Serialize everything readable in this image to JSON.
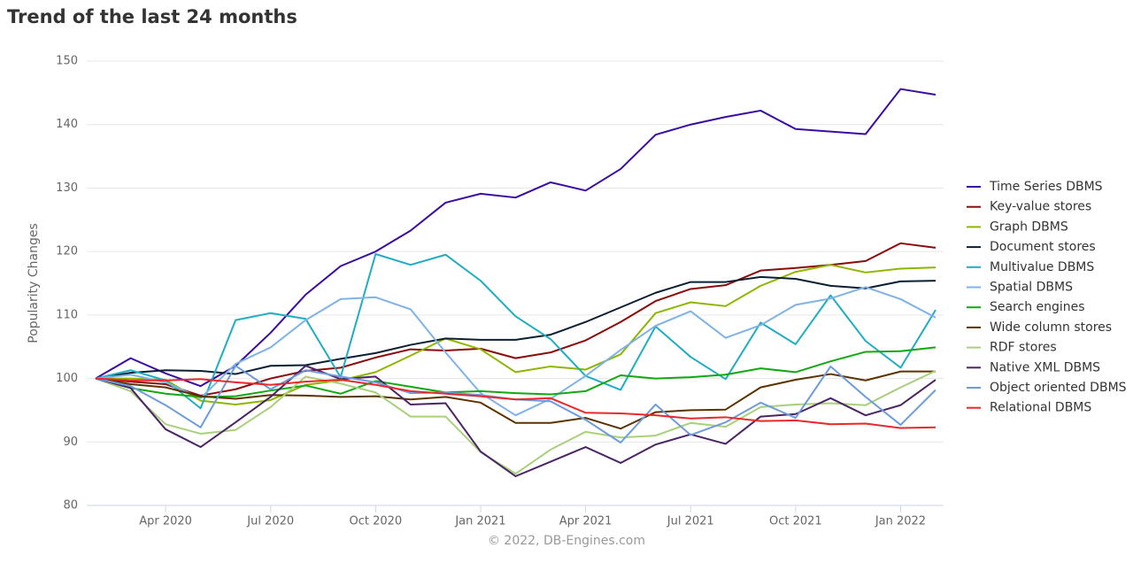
{
  "chart_data": {
    "type": "line",
    "title": "Trend of the last 24 months",
    "y_label": "Popularity Changes",
    "credit": "© 2022, DB-Engines.com",
    "categories": [
      null,
      null,
      "Apr 2020",
      null,
      null,
      "Jul 2020",
      null,
      null,
      "Oct 2020",
      null,
      null,
      "Jan 2021",
      null,
      null,
      "Apr 2021",
      null,
      null,
      "Jul 2021",
      null,
      null,
      "Oct 2021",
      null,
      null,
      "Jan 2022",
      null
    ],
    "ylim": [
      80,
      150
    ],
    "yticks": [
      80,
      90,
      100,
      110,
      120,
      130,
      140,
      150
    ],
    "grid": true,
    "legend": "right",
    "series": [
      {
        "name": "Time Series DBMS",
        "color": "#3a0ca3",
        "values": [
          100,
          103.2,
          100.8,
          98.8,
          102,
          107.2,
          113.2,
          117.7,
          120,
          123.3,
          127.7,
          129.1,
          128.5,
          130.9,
          129.6,
          133,
          138.4,
          140,
          141.2,
          142.2,
          139.3,
          138.9,
          138.5,
          145.6,
          144.7
        ]
      },
      {
        "name": "Key-value stores",
        "color": "#8b0a0a",
        "values": [
          100,
          99.5,
          99.1,
          97.3,
          98.3,
          100,
          101.2,
          101.7,
          103.3,
          104.6,
          104.4,
          104.7,
          103.2,
          104.1,
          106,
          108.9,
          112.2,
          114.1,
          114.7,
          117,
          117.4,
          117.9,
          118.5,
          121.3,
          120.6
        ]
      },
      {
        "name": "Graph DBMS",
        "color": "#8db600",
        "values": [
          100,
          100,
          99.8,
          96.5,
          95.9,
          96.6,
          99,
          99.7,
          101,
          103.6,
          106.3,
          104.6,
          101,
          101.9,
          101.4,
          103.8,
          110.3,
          112,
          111.4,
          114.6,
          116.8,
          117.9,
          116.7,
          117.3,
          117.5
        ]
      },
      {
        "name": "Document stores",
        "color": "#0b1f33",
        "values": [
          100,
          100.9,
          101.3,
          101.2,
          100.7,
          102,
          102.1,
          103.1,
          104,
          105.3,
          106.3,
          106.1,
          106.1,
          106.9,
          108.9,
          111.2,
          113.5,
          115.2,
          115.2,
          116,
          115.7,
          114.6,
          114.2,
          115.3,
          115.4
        ]
      },
      {
        "name": "Multivalue DBMS",
        "color": "#1fadc4",
        "values": [
          100,
          101.3,
          99.7,
          95.3,
          109.2,
          110.3,
          109.4,
          100.2,
          119.6,
          117.9,
          119.5,
          115.4,
          109.8,
          106.2,
          100.4,
          98.2,
          108.2,
          103.4,
          99.9,
          108.8,
          105.4,
          113.1,
          105.9,
          101.7,
          110.8
        ]
      },
      {
        "name": "Spatial DBMS",
        "color": "#7fb3e8",
        "values": [
          100,
          100.6,
          99.4,
          96.9,
          102.3,
          104.9,
          109.2,
          112.5,
          112.8,
          110.9,
          104.1,
          97.7,
          94.2,
          96.8,
          100.4,
          104.5,
          108.3,
          110.6,
          106.4,
          108.4,
          111.6,
          112.6,
          114.4,
          112.5,
          109.6
        ]
      },
      {
        "name": "Search engines",
        "color": "#12a812",
        "values": [
          100,
          98.5,
          97.6,
          97.1,
          97.2,
          98.1,
          98.9,
          97.6,
          99.6,
          98.7,
          97.8,
          98,
          97.7,
          97.5,
          98,
          100.5,
          100,
          100.2,
          100.6,
          101.6,
          101,
          102.7,
          104.2,
          104.3,
          104.9
        ]
      },
      {
        "name": "Wide column stores",
        "color": "#5c3300",
        "values": [
          100,
          99.1,
          98.6,
          97.2,
          96.8,
          97.4,
          97.3,
          97.1,
          97.2,
          96.7,
          97.1,
          96.2,
          93,
          93,
          93.8,
          92.1,
          94.7,
          95,
          95.1,
          98.6,
          99.8,
          100.7,
          99.7,
          101.1,
          101.1
        ]
      },
      {
        "name": "RDF stores",
        "color": "#a8d07a",
        "values": [
          100,
          98,
          92.8,
          91.3,
          91.9,
          95.5,
          100.3,
          99.2,
          97.8,
          94,
          94,
          88.4,
          85,
          88.8,
          91.6,
          90.7,
          91,
          93,
          92.4,
          95.5,
          95.9,
          96.1,
          95.8,
          98.6,
          101.2
        ]
      },
      {
        "name": "Native XML DBMS",
        "color": "#4b2466",
        "values": [
          100,
          98.5,
          92,
          89.2,
          93.1,
          97.1,
          102,
          99.9,
          100.3,
          95.9,
          96.1,
          88.5,
          84.6,
          86.9,
          89.2,
          86.7,
          89.6,
          91.2,
          89.7,
          94,
          94.4,
          96.9,
          94.2,
          95.8,
          99.8
        ]
      },
      {
        "name": "Object oriented DBMS",
        "color": "#6d9bde",
        "values": [
          100,
          98.8,
          95.8,
          92.3,
          102,
          98.3,
          101.3,
          100.3,
          99.4,
          97.7,
          97.8,
          97.4,
          96.7,
          96.4,
          93.5,
          89.9,
          95.9,
          91.1,
          93.1,
          96.2,
          93.8,
          101.9,
          97.1,
          92.7,
          98.2
        ]
      },
      {
        "name": "Relational DBMS",
        "color": "#e8282b",
        "values": [
          100,
          99.7,
          99.7,
          99.9,
          99.4,
          99,
          99.5,
          99.8,
          99,
          98,
          97.6,
          97.2,
          96.7,
          96.9,
          94.6,
          94.5,
          94.2,
          93.7,
          93.9,
          93.3,
          93.4,
          92.8,
          92.9,
          92.2,
          92.3
        ]
      }
    ]
  }
}
